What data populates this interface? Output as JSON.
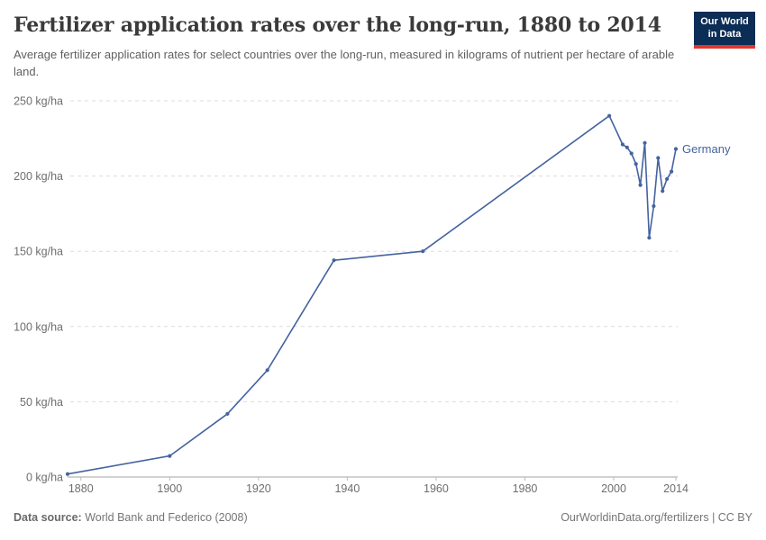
{
  "header": {
    "title": "Fertilizer application rates over the long-run, 1880 to 2014",
    "subtitle": "Average fertilizer application rates for select countries over the long-run, measured in kilograms of nutrient per hectare of arable land."
  },
  "logo": {
    "line1": "Our World",
    "line2": "in Data",
    "bg_color": "#0C2D55",
    "accent_color": "#E0372E"
  },
  "footer": {
    "source_label": "Data source:",
    "source_text": " World Bank and Federico (2008)",
    "link_text": "OurWorldinData.org/fertilizers | CC BY"
  },
  "colors": {
    "series_blue": "#44639F",
    "gridline": "#DCDCDC",
    "axis_line": "#A5A5A5",
    "tick_mark": "#BBBBBB",
    "tick_label": "#6E6E6E"
  },
  "chart_data": {
    "type": "line",
    "title": "Fertilizer application rates over the long-run, 1880 to 2014",
    "xlabel": "",
    "ylabel": "kg/ha",
    "unit": "kg/ha",
    "xlim": [
      1877,
      2014
    ],
    "ylim": [
      0,
      250
    ],
    "x_ticks": [
      1880,
      1900,
      1920,
      1940,
      1960,
      1980,
      2000,
      2014
    ],
    "y_ticks": [
      0,
      50,
      100,
      150,
      200,
      250
    ],
    "y_tick_labels": [
      "0 kg/ha",
      "50 kg/ha",
      "100 kg/ha",
      "150 kg/ha",
      "200 kg/ha",
      "250 kg/ha"
    ],
    "grid": "horizontal-dashed",
    "legend_position": "end-of-line-label",
    "series": [
      {
        "name": "Germany",
        "color": "#44639F",
        "points": [
          [
            1877,
            2
          ],
          [
            1900,
            14
          ],
          [
            1913,
            42
          ],
          [
            1922,
            71
          ],
          [
            1937,
            144
          ],
          [
            1957,
            150
          ],
          [
            1999,
            240
          ],
          [
            2002,
            221
          ],
          [
            2003,
            219
          ],
          [
            2004,
            215
          ],
          [
            2005,
            208
          ],
          [
            2006,
            194
          ],
          [
            2007,
            222
          ],
          [
            2008,
            159
          ],
          [
            2009,
            180
          ],
          [
            2010,
            212
          ],
          [
            2011,
            190
          ],
          [
            2012,
            198
          ],
          [
            2013,
            203
          ],
          [
            2014,
            218
          ]
        ]
      }
    ]
  }
}
